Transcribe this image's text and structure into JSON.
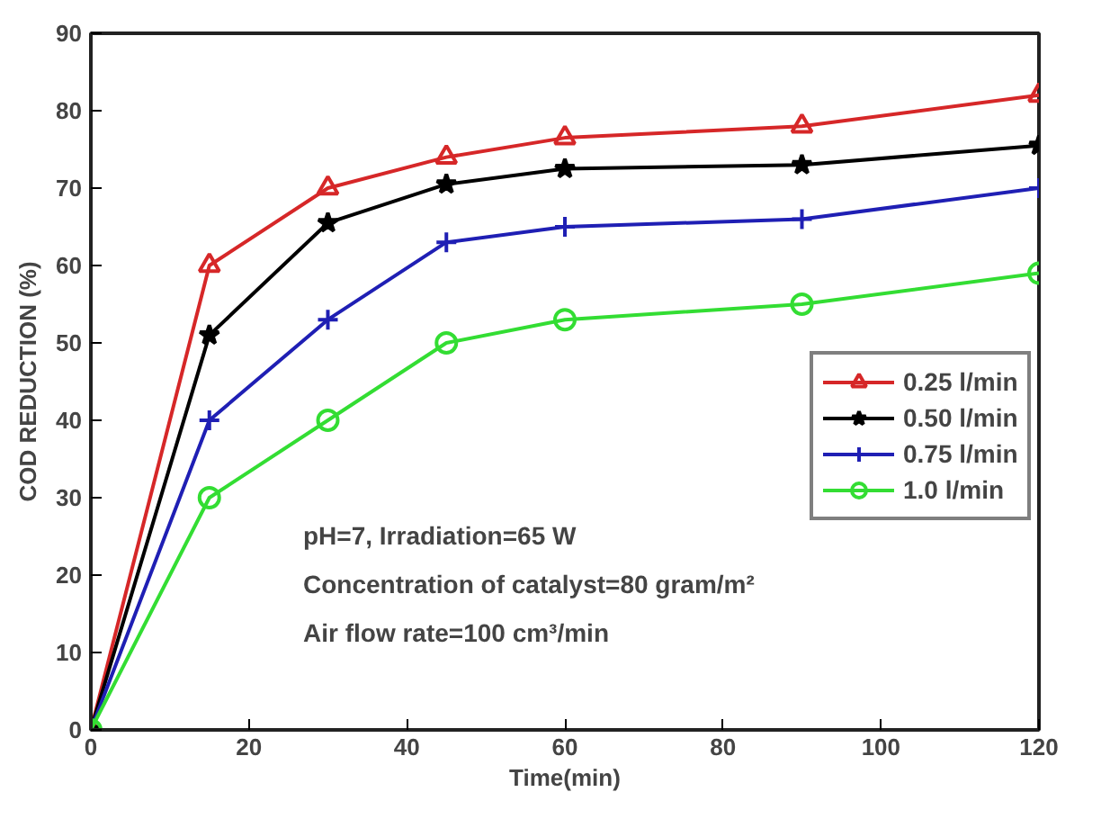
{
  "chart_data": {
    "type": "line",
    "xlabel": "Time(min)",
    "ylabel": "COD REDUCTION (%)",
    "x": [
      0,
      15,
      30,
      45,
      60,
      90,
      120
    ],
    "series": [
      {
        "name": "0.25 l/min",
        "color": "#d62728",
        "marker": "triangle",
        "values": [
          0,
          60,
          70,
          74,
          76.5,
          78,
          82
        ]
      },
      {
        "name": "0.50 l/min",
        "color": "#000000",
        "marker": "star",
        "values": [
          0,
          51,
          65.5,
          70.5,
          72.5,
          73,
          75.5
        ]
      },
      {
        "name": "0.75 l/min",
        "color": "#1f1fb4",
        "marker": "cross",
        "values": [
          0,
          40,
          53,
          63,
          65,
          66,
          70
        ]
      },
      {
        "name": "1.0 l/min",
        "color": "#33dd33",
        "marker": "circle",
        "values": [
          0,
          30,
          40,
          50,
          53,
          55,
          59
        ]
      }
    ],
    "xlim": [
      0,
      120
    ],
    "xticks": [
      0,
      20,
      40,
      60,
      80,
      100,
      120
    ],
    "ylim": [
      0,
      90
    ],
    "yticks": [
      0,
      10,
      20,
      30,
      40,
      50,
      60,
      70,
      80,
      90
    ],
    "grid": false,
    "legend": "right",
    "line_style": "solid",
    "annotations": [
      "pH=7,  Irradiation=65 W",
      "Concentration of catalyst=80 gram/m²",
      "Air flow rate=100 cm³/min"
    ]
  }
}
